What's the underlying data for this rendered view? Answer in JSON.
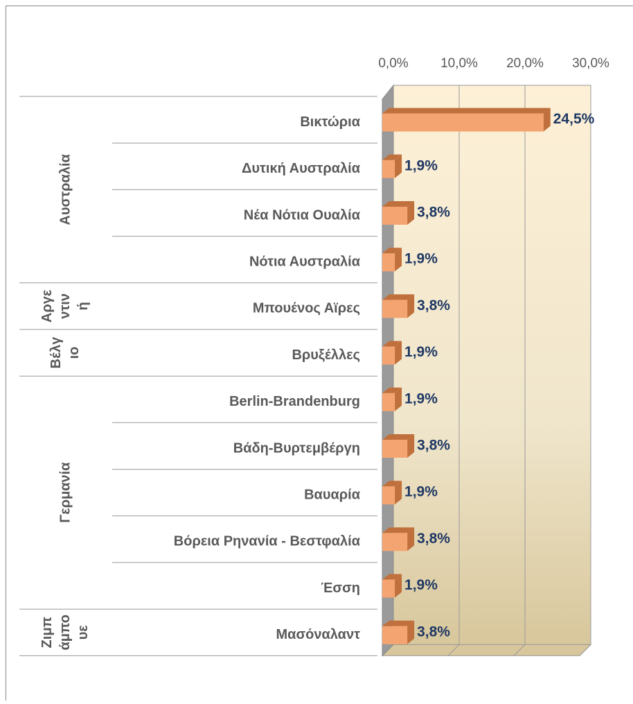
{
  "chart_data": {
    "type": "bar3d_horizontal_grouped",
    "groups": [
      {
        "name": "Αυστραλία",
        "categories": [
          "Βικτώρια",
          "Δυτική Αυστραλία",
          "Νέα Νότια Ουαλία",
          "Νότια Αυστραλία"
        ],
        "values": [
          24.5,
          1.9,
          3.8,
          1.9
        ],
        "value_labels": [
          "24,5%",
          "1,9%",
          "3,8%",
          "1,9%"
        ]
      },
      {
        "name": "Αργεντινή",
        "categories": [
          "Μπουένος Αϊρες"
        ],
        "values": [
          3.8
        ],
        "value_labels": [
          "3,8%"
        ]
      },
      {
        "name": "Βέλγιο",
        "categories": [
          "Βρυξέλλες"
        ],
        "values": [
          1.9
        ],
        "value_labels": [
          "1,9%"
        ]
      },
      {
        "name": "Γερμανία",
        "categories": [
          "Berlin-Brandenburg",
          "Βάδη-Βυρτεμβέργη",
          "Βαυαρία",
          "Βόρεια Ρηνανία - Βεστφαλία",
          "Έσση"
        ],
        "values": [
          1.9,
          3.8,
          1.9,
          3.8,
          1.9
        ],
        "value_labels": [
          "1,9%",
          "3,8%",
          "1,9%",
          "3,8%",
          "1,9%"
        ]
      },
      {
        "name": "Ζιμπάμπουε",
        "categories": [
          "Μασόναλαντ"
        ],
        "values": [
          3.8
        ],
        "value_labels": [
          "3,8%"
        ]
      }
    ],
    "xlim": [
      0,
      30
    ],
    "xticks": [
      {
        "value": 0,
        "label": "0,0%"
      },
      {
        "value": 10,
        "label": "10,0%"
      },
      {
        "value": 20,
        "label": "20,0%"
      },
      {
        "value": 30,
        "label": "30,0%"
      }
    ],
    "grid": true,
    "color": "#f4a470",
    "shade_color": "#c0703c"
  }
}
